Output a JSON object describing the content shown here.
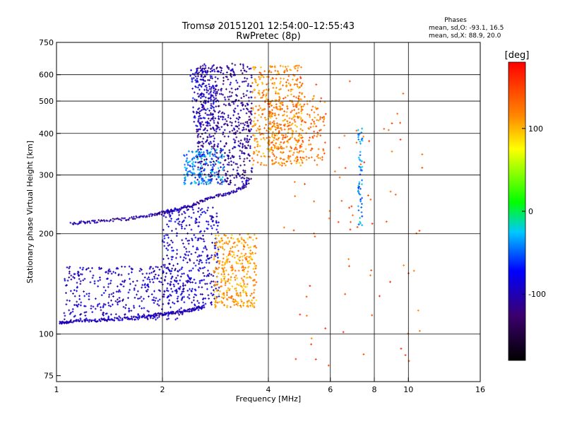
{
  "chart_data": {
    "type": "scatter",
    "title": "Tromsø 20151201 12:54:00–12:55:43",
    "subtitle": "RwPretec (8p)",
    "stats": {
      "heading": "Phases",
      "o_label": "mean, sd,O: -93.1, 16.5",
      "x_label": "mean, sd,X: 88.9, 20.0"
    },
    "xlabel": "Frequency [MHz]",
    "ylabel": "Stationary phase Virtual Height [km]",
    "xscale": "log",
    "yscale": "log",
    "xlim": [
      1,
      16
    ],
    "ylim": [
      72,
      750
    ],
    "x_ticks": [
      1,
      2,
      4,
      6,
      8,
      10,
      16
    ],
    "x_tick_labels": [
      "1",
      "2",
      "4",
      "6",
      "8",
      "10",
      "16"
    ],
    "x_grid": [
      2,
      4,
      6,
      8,
      10
    ],
    "y_ticks": [
      75,
      100,
      200,
      300,
      400,
      500,
      600,
      750
    ],
    "y_tick_labels": [
      "75",
      "100",
      "200",
      "300",
      "400",
      "500",
      "600",
      "750"
    ],
    "y_grid": [
      100,
      200,
      300,
      400,
      500,
      600
    ],
    "grid": true,
    "colorbar": {
      "label": "[deg]",
      "range": [
        -180,
        180
      ],
      "ticks": [
        100,
        0,
        -100
      ],
      "tick_labels": [
        "100",
        "0",
        "-100"
      ]
    },
    "series": [
      {
        "traces": [
          {
            "x": [
              1.02,
              1.1,
              1.3,
              1.5,
              1.8,
              2.0,
              2.2,
              2.4,
              2.6
            ],
            "y": [
              108,
              109,
              110,
              111,
              113,
              115,
              116,
              118,
              120
            ],
            "phase": -100
          },
          {
            "x": [
              1.1,
              1.3,
              1.6,
              1.9,
              2.1,
              2.4,
              2.7,
              3.1,
              3.5
            ],
            "y": [
              215,
              218,
              222,
              228,
              234,
              242,
              255,
              265,
              280
            ],
            "phase": -105
          }
        ],
        "clusters": [
          {
            "x": [
              1.05,
              2.3
            ],
            "y": [
              110,
              160
            ],
            "phase": -95,
            "n": 380
          },
          {
            "x": [
              2.0,
              2.9
            ],
            "y": [
              120,
              240
            ],
            "phase": -90,
            "n": 380
          },
          {
            "x": [
              2.8,
              3.7
            ],
            "y": [
              120,
              200
            ],
            "phase": 110,
            "n": 360
          },
          {
            "x": [
              2.5,
              3.6
            ],
            "y": [
              280,
              650
            ],
            "phase": -110,
            "n": 650
          },
          {
            "x": [
              2.3,
              3.0
            ],
            "y": [
              280,
              360
            ],
            "phase": -40,
            "n": 180
          },
          {
            "x": [
              2.4,
              2.9
            ],
            "y": [
              420,
              630
            ],
            "phase": -85,
            "n": 120
          },
          {
            "x": [
              3.6,
              5.0
            ],
            "y": [
              320,
              640
            ],
            "phase": 115,
            "n": 420
          },
          {
            "x": [
              4.0,
              5.8
            ],
            "y": [
              330,
              520
            ],
            "phase": 125,
            "n": 220
          },
          {
            "x": [
              7.2,
              7.4
            ],
            "y": [
              210,
              420
            ],
            "phase": -40,
            "n": 60
          },
          {
            "x": [
              4.4,
              11.5
            ],
            "y": [
              80,
              600
            ],
            "phase": 140,
            "n": 90
          }
        ]
      }
    ]
  }
}
